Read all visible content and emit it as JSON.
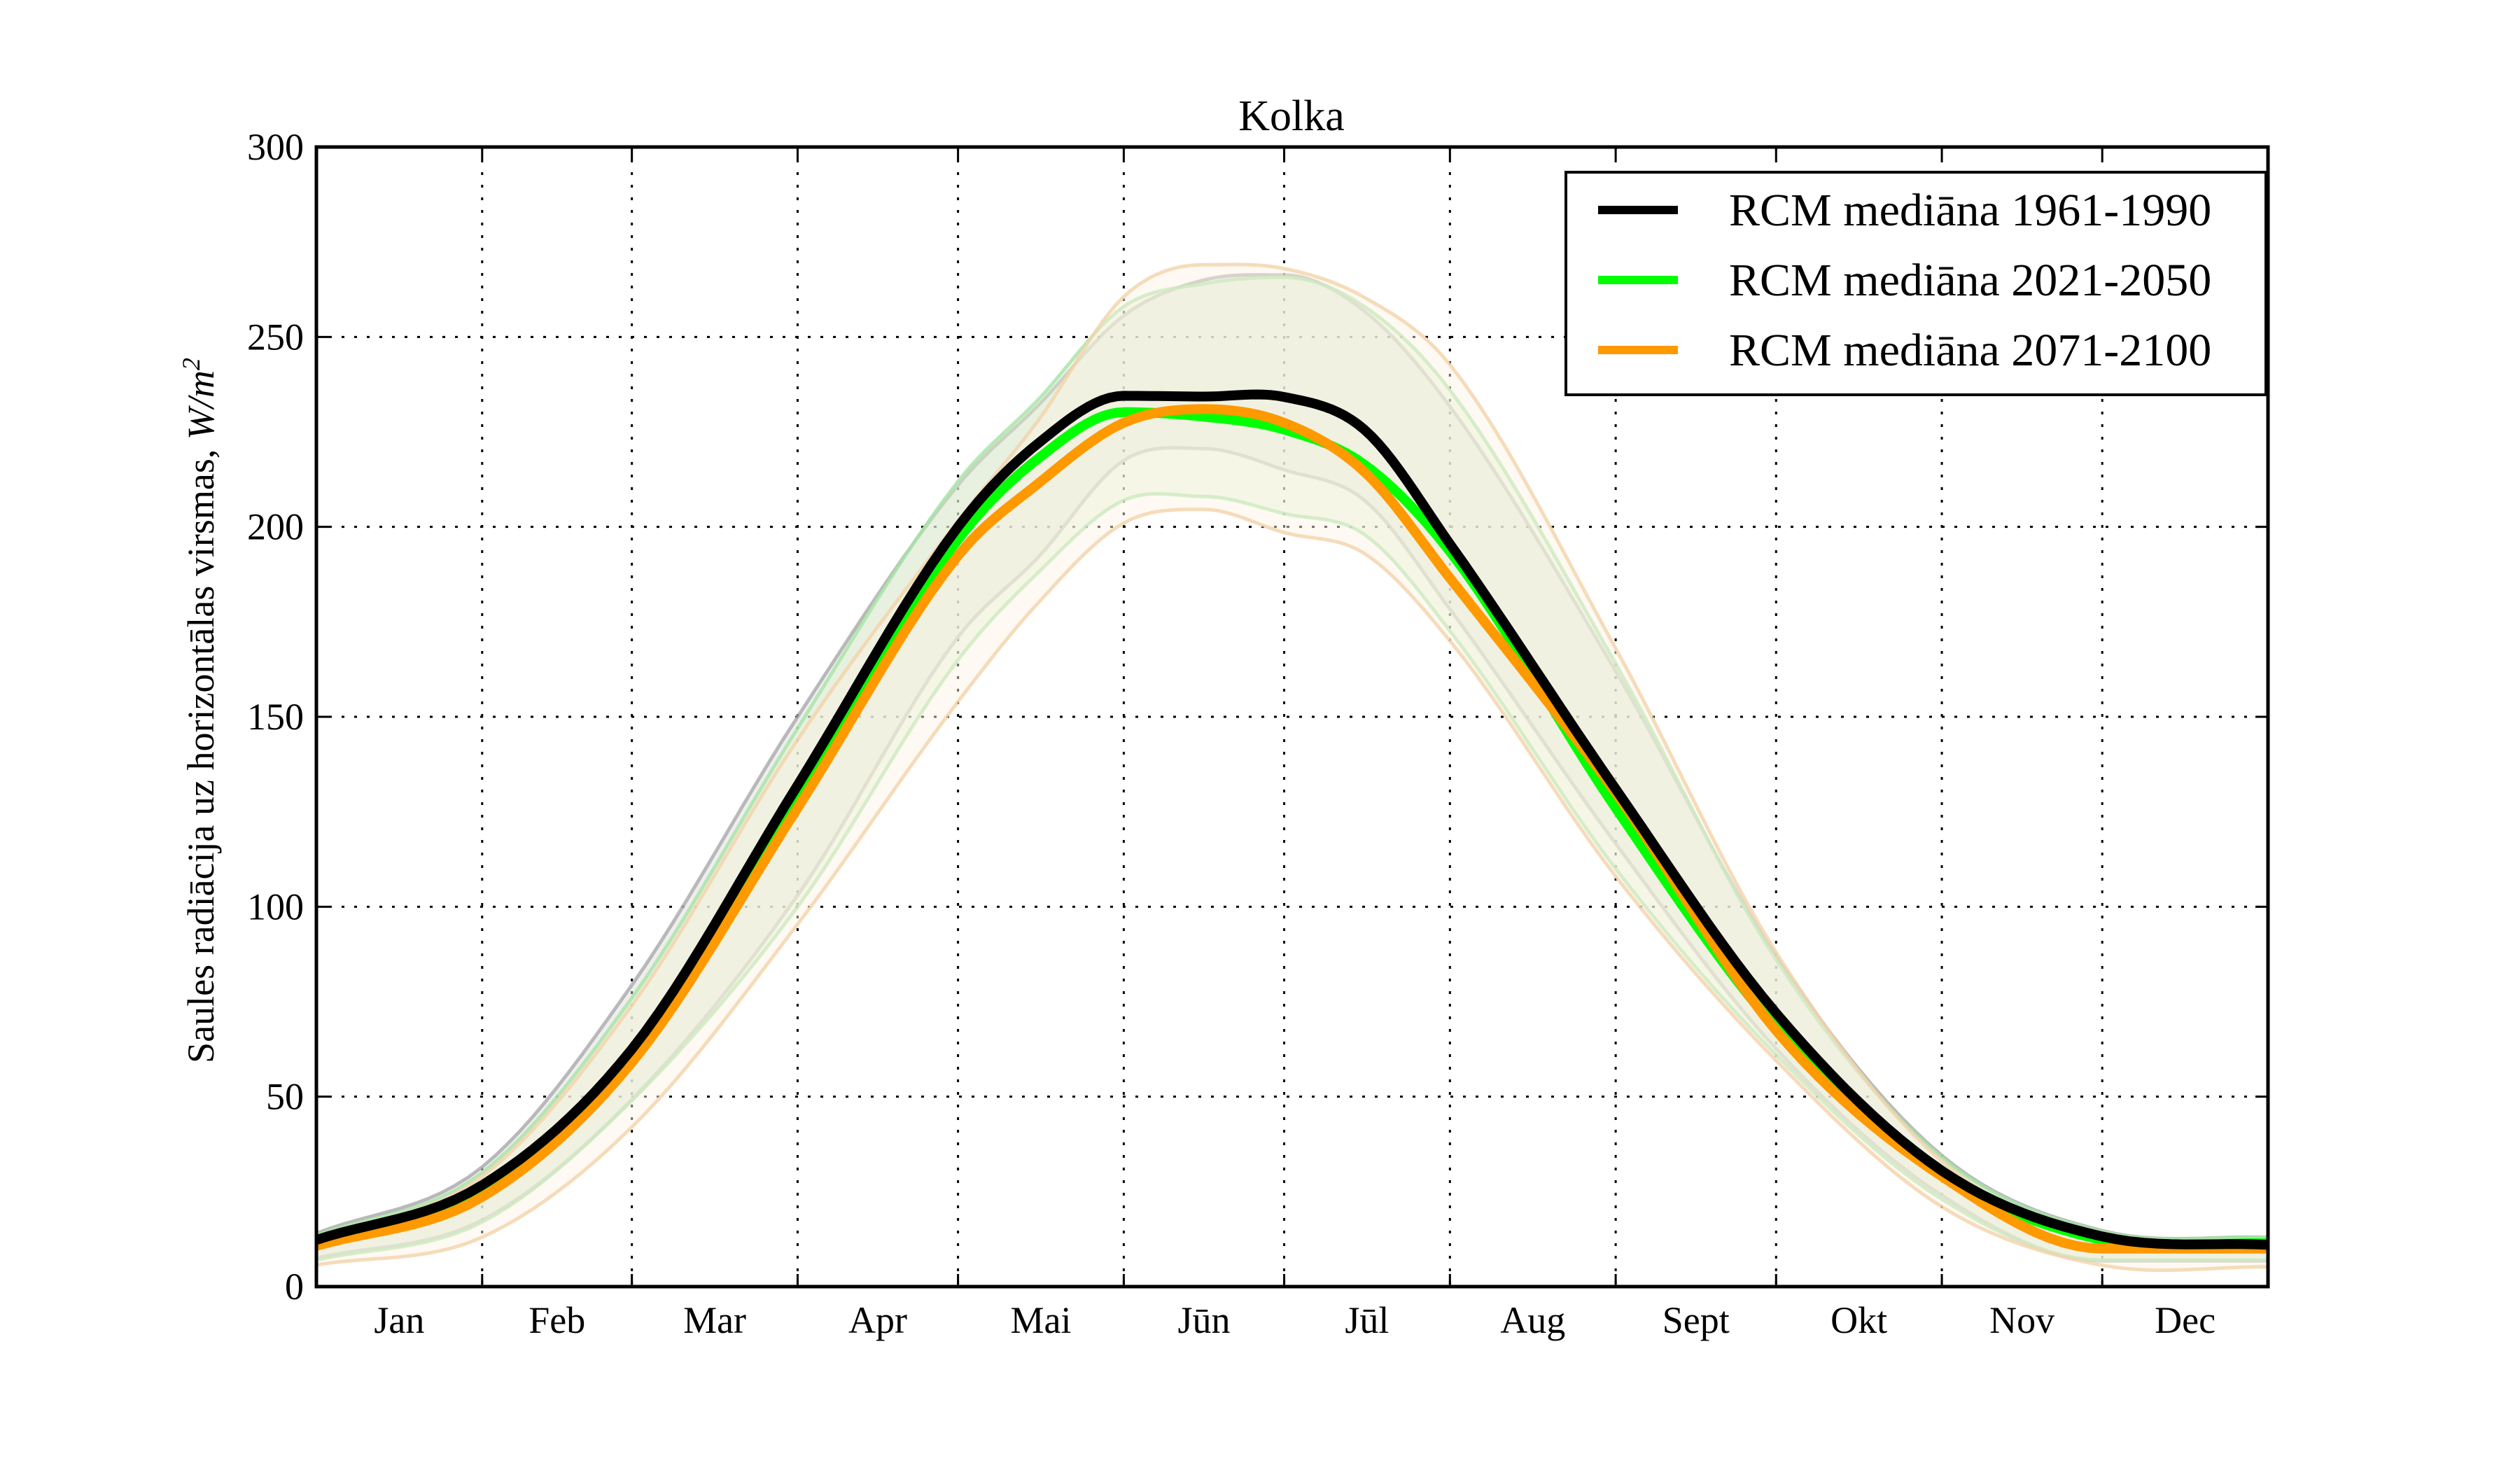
{
  "chart_data": {
    "type": "line",
    "title": "Kolka",
    "xlabel": "",
    "ylabel": "Saules radiācija uz horizontālas virsmas, W/m²",
    "ylabel_main": "Saules radiācija uz horizontālas virsmas, ",
    "ylabel_unit": "W/m",
    "ylabel_sup": "2",
    "x_unit": "day of year",
    "xlim": [
      0,
      365
    ],
    "ylim": [
      0,
      300
    ],
    "yticks": [
      0,
      50,
      100,
      150,
      200,
      250,
      300
    ],
    "ytick_labels": [
      "0",
      "50",
      "100",
      "150",
      "200",
      "250",
      "300"
    ],
    "month_boundaries": [
      0,
      31,
      59,
      90,
      120,
      151,
      181,
      212,
      243,
      273,
      304,
      334,
      365
    ],
    "categories": [
      "Jan",
      "Feb",
      "Mar",
      "Apr",
      "Mai",
      "Jūn",
      "Jūl",
      "Aug",
      "Sept",
      "Okt",
      "Nov",
      "Dec"
    ],
    "grid": true,
    "legend_position": "top-right",
    "x": [
      0,
      31,
      59,
      90,
      120,
      135,
      151,
      166,
      181,
      196,
      212,
      243,
      273,
      304,
      334,
      365
    ],
    "series": [
      {
        "name": "RCM mediāna 1961-1990",
        "color": "#000000",
        "values": [
          12.3,
          26.7,
          62.5,
          132,
          200,
          222,
          234.5,
          234.3,
          234.2,
          225.6,
          195.5,
          131,
          72,
          30.5,
          13.2,
          11
        ]
      },
      {
        "name": "RCM mediāna 2021-2050",
        "color": "#00ff00",
        "values": [
          12.3,
          26,
          61,
          130,
          196.7,
          218,
          230.2,
          229,
          225.6,
          216.4,
          193.5,
          126,
          68,
          29.5,
          12.3,
          11.4
        ]
      },
      {
        "name": "RCM mediāna 2071-2100",
        "color": "#ff9900",
        "values": [
          10.7,
          23.6,
          59,
          126,
          192.4,
          211.4,
          227.4,
          231,
          227.4,
          214.5,
          186.5,
          130,
          67.4,
          29,
          10,
          10
        ]
      }
    ],
    "bands": [
      {
        "name": "range 1961-1990",
        "fill": "#d9d9d9",
        "edge": "#a9a9a9",
        "upper": [
          14,
          31.5,
          79.4,
          150,
          211,
          232,
          255.6,
          265,
          266.3,
          256.8,
          231.7,
          162,
          87,
          34.5,
          14.7,
          12.9
        ],
        "lower": [
          7.5,
          17.5,
          49.3,
          103,
          171,
          192,
          217.5,
          220.6,
          215,
          207,
          178.3,
          116.6,
          62.6,
          24,
          6.8,
          6.8
        ]
      },
      {
        "name": "range 2021-2050",
        "fill": "#dff3cf",
        "edge": "#a6e3a6",
        "upper": [
          13.5,
          30,
          76,
          147,
          212,
          233.5,
          258,
          264,
          265.7,
          258,
          236,
          164,
          86,
          34,
          14.5,
          13
        ],
        "lower": [
          7,
          17,
          49,
          100,
          165,
          188,
          207,
          208,
          203.5,
          198,
          172.6,
          110,
          61,
          23,
          7,
          7
        ]
      },
      {
        "name": "range 2071-2100",
        "fill": "#fdf1e3",
        "edge": "#f2d3aa",
        "upper": [
          13,
          29,
          74,
          144,
          201.6,
          228,
          260.6,
          269,
          268,
          260.4,
          242.7,
          168,
          88,
          33,
          13,
          12
        ],
        "lower": [
          5.7,
          13,
          42,
          95.4,
          154,
          180,
          201,
          204.6,
          198.5,
          193,
          170,
          108,
          59.5,
          21,
          5.6,
          5.2
        ]
      }
    ]
  }
}
